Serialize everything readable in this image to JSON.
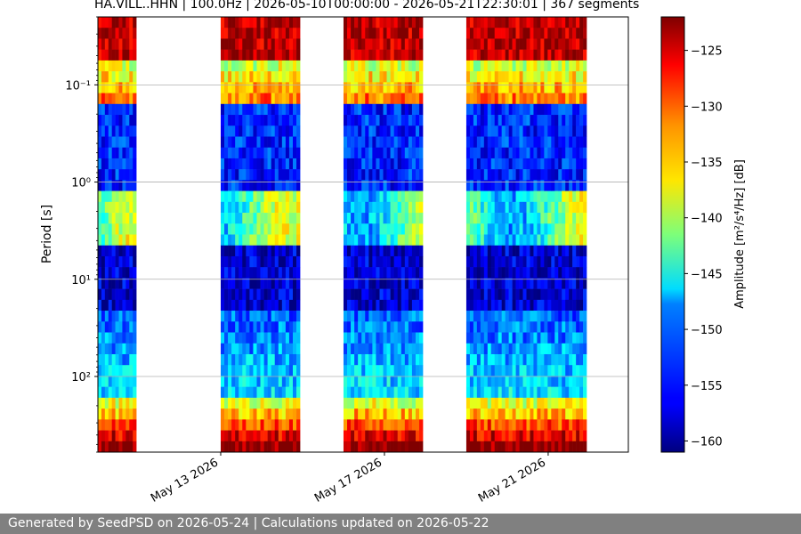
{
  "title": "HA.VILL..HHN | 100.0Hz | 2026-05-10T00:00:00 - 2026-05-21T22:30:01 | 367 segments",
  "footer": "Generated by SeedPSD on 2026-05-24 | Calculations updated on 2026-05-22",
  "colorbar": {
    "label": "Amplitude [m²/s⁴/Hz] [dB]",
    "ticks": [
      -125,
      -130,
      -135,
      -140,
      -145,
      -150,
      -155,
      -160
    ],
    "tick_labels": [
      "−125",
      "−130",
      "−135",
      "−140",
      "−145",
      "−150",
      "−155",
      "−160"
    ],
    "range": [
      -161,
      -122
    ],
    "colormap": "jet"
  },
  "chart_data": {
    "type": "heatmap",
    "title": "HA.VILL..HHN | 100.0Hz | 2026-05-10T00:00:00 - 2026-05-21T22:30:01 | 367 segments",
    "xlabel": "",
    "ylabel": "Period [s]",
    "y_scale": "log",
    "y_inverted": true,
    "ylim": [
      0.02,
      600
    ],
    "y_ticks": [
      0.1,
      1,
      10,
      100
    ],
    "y_tick_labels": [
      "10⁻¹",
      "10⁰",
      "10¹",
      "10²"
    ],
    "x_tick_labels": [
      "May 13 2026",
      "May 17 2026",
      "May 21 2026"
    ],
    "xlim": [
      "2026-05-10T00:00",
      "2026-05-22T23:00"
    ],
    "grid": "horizontal",
    "data_segments": [
      {
        "start": "2026-05-10T00:00",
        "end": "2026-05-10T22:30"
      },
      {
        "start": "2026-05-13T00:00",
        "end": "2026-05-14T22:30"
      },
      {
        "start": "2026-05-16T00:00",
        "end": "2026-05-17T22:30"
      },
      {
        "start": "2026-05-19T00:00",
        "end": "2026-05-21T22:30"
      }
    ],
    "values_db_range": [
      -160,
      -122
    ]
  }
}
